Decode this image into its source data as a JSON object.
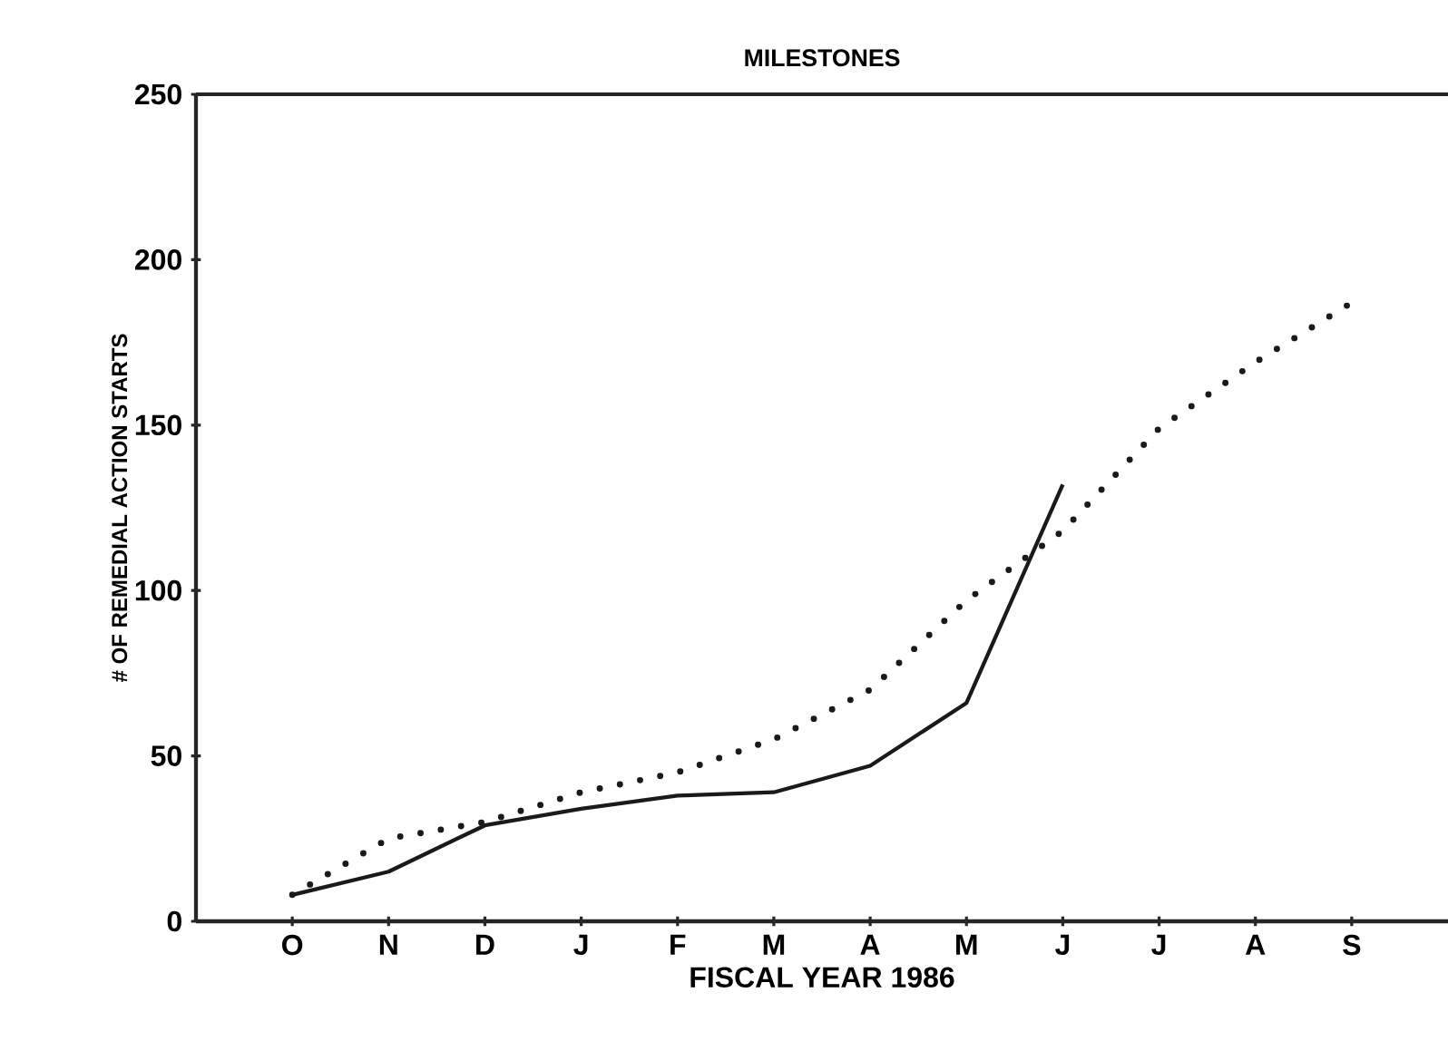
{
  "chart_data": {
    "type": "line",
    "title": "MILESTONES",
    "xlabel": "FISCAL YEAR 1986",
    "ylabel": "# OF REMEDIAL ACTION STARTS",
    "categories": [
      "O",
      "N",
      "D",
      "J",
      "F",
      "M",
      "A",
      "M",
      "J",
      "J",
      "A",
      "S"
    ],
    "ylim": [
      0,
      250
    ],
    "yticks": [
      0,
      50,
      100,
      150,
      200,
      250
    ],
    "marker": "none",
    "series": [
      {
        "color": "#1a1a1a",
        "line_style": "solid",
        "values": [
          8,
          15,
          29,
          34,
          38,
          39,
          47,
          66,
          132,
          null,
          null,
          null
        ]
      },
      {
        "color": "#1a1a1a",
        "line_style": "dotted",
        "values": [
          8,
          25,
          30,
          39,
          45,
          55,
          70,
          97,
          118,
          149,
          169,
          187
        ]
      }
    ]
  }
}
